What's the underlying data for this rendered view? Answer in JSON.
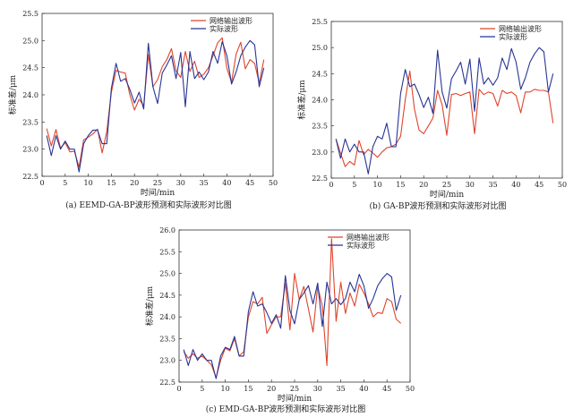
{
  "colors": {
    "predicted": "#e0442c",
    "actual": "#283593",
    "axis": "#333333"
  },
  "chart_data": [
    {
      "type": "line",
      "caption": "(a) EEMD-GA-BP波形预测和实际波形对比图",
      "xlabel": "时间/min",
      "ylabel": "标准差/μm",
      "xlim": [
        0,
        50
      ],
      "ylim": [
        22.5,
        25.5
      ],
      "xticks": [
        0,
        5,
        10,
        15,
        20,
        25,
        30,
        35,
        40,
        45,
        50
      ],
      "yticks": [
        22.5,
        23.0,
        23.5,
        24.0,
        24.5,
        25.0,
        25.5
      ],
      "grid": false,
      "legend_position": "top-right",
      "x": [
        1,
        2,
        3,
        4,
        5,
        6,
        7,
        8,
        9,
        10,
        11,
        12,
        13,
        14,
        15,
        16,
        17,
        18,
        19,
        20,
        21,
        22,
        23,
        24,
        25,
        26,
        27,
        28,
        29,
        30,
        31,
        32,
        33,
        34,
        35,
        36,
        37,
        38,
        39,
        40,
        41,
        42,
        43,
        44,
        45,
        46,
        47,
        48
      ],
      "series": [
        {
          "name": "网络输出波形",
          "values": [
            23.38,
            23.06,
            23.36,
            23.02,
            23.12,
            22.95,
            22.96,
            22.67,
            23.17,
            23.22,
            23.28,
            23.37,
            22.93,
            23.32,
            24.05,
            24.45,
            24.42,
            24.4,
            24.0,
            23.72,
            23.92,
            23.8,
            24.74,
            24.15,
            24.28,
            24.52,
            24.65,
            24.85,
            24.44,
            24.32,
            24.8,
            24.43,
            24.62,
            24.32,
            24.38,
            24.5,
            24.72,
            24.96,
            25.05,
            24.49,
            24.23,
            24.75,
            24.97,
            24.48,
            24.65,
            24.58,
            24.22,
            24.65
          ]
        },
        {
          "name": "实际波形",
          "values": [
            23.25,
            22.88,
            23.25,
            23.0,
            23.15,
            23.0,
            23.0,
            22.58,
            23.1,
            23.25,
            23.35,
            23.35,
            23.1,
            23.1,
            24.12,
            24.58,
            24.25,
            24.3,
            24.1,
            23.85,
            24.05,
            23.74,
            24.95,
            24.15,
            23.84,
            24.4,
            24.55,
            24.72,
            24.3,
            24.78,
            23.78,
            24.8,
            24.3,
            24.42,
            24.28,
            24.42,
            24.8,
            24.58,
            24.98,
            24.72,
            24.2,
            24.42,
            24.72,
            24.88,
            25.0,
            24.92,
            24.15,
            24.5
          ]
        }
      ]
    },
    {
      "type": "line",
      "caption": "(b) GA-BP波形预测和实际波形对比图",
      "xlabel": "时间/min",
      "ylabel": "标准差/μm",
      "xlim": [
        0,
        50
      ],
      "ylim": [
        22.5,
        25.5
      ],
      "xticks": [
        0,
        5,
        10,
        15,
        20,
        25,
        30,
        35,
        40,
        45,
        50
      ],
      "yticks": [
        22.5,
        23.0,
        23.5,
        24.0,
        24.5,
        25.0,
        25.5
      ],
      "grid": false,
      "legend_position": "top-right",
      "x": [
        1,
        2,
        3,
        4,
        5,
        6,
        7,
        8,
        9,
        10,
        11,
        12,
        13,
        14,
        15,
        16,
        17,
        18,
        19,
        20,
        21,
        22,
        23,
        24,
        25,
        26,
        27,
        28,
        29,
        30,
        31,
        32,
        33,
        34,
        35,
        36,
        37,
        38,
        39,
        40,
        41,
        42,
        43,
        44,
        45,
        46,
        47,
        48
      ],
      "series": [
        {
          "name": "网络输出波形",
          "values": [
            23.25,
            22.98,
            22.72,
            22.82,
            22.75,
            23.22,
            22.95,
            23.05,
            22.98,
            22.9,
            23.0,
            23.08,
            23.1,
            23.15,
            23.3,
            24.0,
            24.55,
            23.82,
            23.42,
            23.35,
            23.5,
            23.65,
            24.18,
            23.9,
            23.32,
            24.1,
            24.12,
            24.08,
            24.12,
            24.15,
            23.35,
            24.2,
            24.1,
            24.15,
            24.12,
            23.88,
            24.18,
            24.12,
            24.15,
            24.08,
            23.75,
            24.15,
            24.15,
            24.2,
            24.18,
            24.18,
            24.15,
            23.55
          ]
        },
        {
          "name": "实际波形",
          "values": [
            23.25,
            22.88,
            23.25,
            23.0,
            23.15,
            23.0,
            23.0,
            22.58,
            23.1,
            23.3,
            23.25,
            23.55,
            23.1,
            23.1,
            24.12,
            24.58,
            24.25,
            24.3,
            24.1,
            23.85,
            24.05,
            23.74,
            24.95,
            24.15,
            23.84,
            24.4,
            24.55,
            24.72,
            24.3,
            24.78,
            23.78,
            24.8,
            24.3,
            24.42,
            24.28,
            24.42,
            24.8,
            24.58,
            24.98,
            24.72,
            24.2,
            24.42,
            24.72,
            24.88,
            25.0,
            24.92,
            24.15,
            24.5
          ]
        }
      ]
    },
    {
      "type": "line",
      "caption": "(c) EMD-GA-BP波形预测和实际波形对比图",
      "xlabel": "时间/min",
      "ylabel": "标准差/μm",
      "xlim": [
        0,
        50
      ],
      "ylim": [
        22.5,
        26.0
      ],
      "xticks": [
        0,
        5,
        10,
        15,
        20,
        25,
        30,
        35,
        40,
        45,
        50
      ],
      "yticks": [
        22.5,
        23.0,
        23.5,
        24.0,
        24.5,
        25.0,
        25.5,
        26.0
      ],
      "grid": false,
      "legend_position": "top-right",
      "x": [
        1,
        2,
        3,
        4,
        5,
        6,
        7,
        8,
        9,
        10,
        11,
        12,
        13,
        14,
        15,
        16,
        17,
        18,
        19,
        20,
        21,
        22,
        23,
        24,
        25,
        26,
        27,
        28,
        29,
        30,
        31,
        32,
        33,
        34,
        35,
        36,
        37,
        38,
        39,
        40,
        41,
        42,
        43,
        44,
        45,
        46,
        47,
        48
      ],
      "series": [
        {
          "name": "网络输出波形",
          "values": [
            23.2,
            23.05,
            23.15,
            23.05,
            23.1,
            23.0,
            22.9,
            22.6,
            23.0,
            23.28,
            23.22,
            23.5,
            23.1,
            23.2,
            24.0,
            24.35,
            24.3,
            24.45,
            23.62,
            23.82,
            24.0,
            24.0,
            24.78,
            23.7,
            25.0,
            24.4,
            24.7,
            24.18,
            23.65,
            24.7,
            24.25,
            22.88,
            25.8,
            23.9,
            24.8,
            24.08,
            24.55,
            24.25,
            24.75,
            24.55,
            24.3,
            24.0,
            24.1,
            24.08,
            24.42,
            24.35,
            23.95,
            23.85
          ]
        },
        {
          "name": "实际波形",
          "values": [
            23.25,
            22.88,
            23.25,
            23.0,
            23.15,
            23.0,
            23.0,
            22.58,
            23.1,
            23.3,
            23.25,
            23.55,
            23.1,
            23.1,
            24.12,
            24.58,
            24.25,
            24.3,
            24.1,
            23.85,
            24.05,
            23.74,
            24.95,
            24.15,
            23.84,
            24.4,
            24.55,
            24.72,
            24.3,
            24.78,
            23.78,
            24.8,
            24.3,
            24.42,
            24.28,
            24.42,
            24.8,
            24.58,
            24.98,
            24.72,
            24.2,
            24.42,
            24.72,
            24.88,
            25.0,
            24.92,
            24.15,
            24.5
          ]
        }
      ]
    }
  ]
}
